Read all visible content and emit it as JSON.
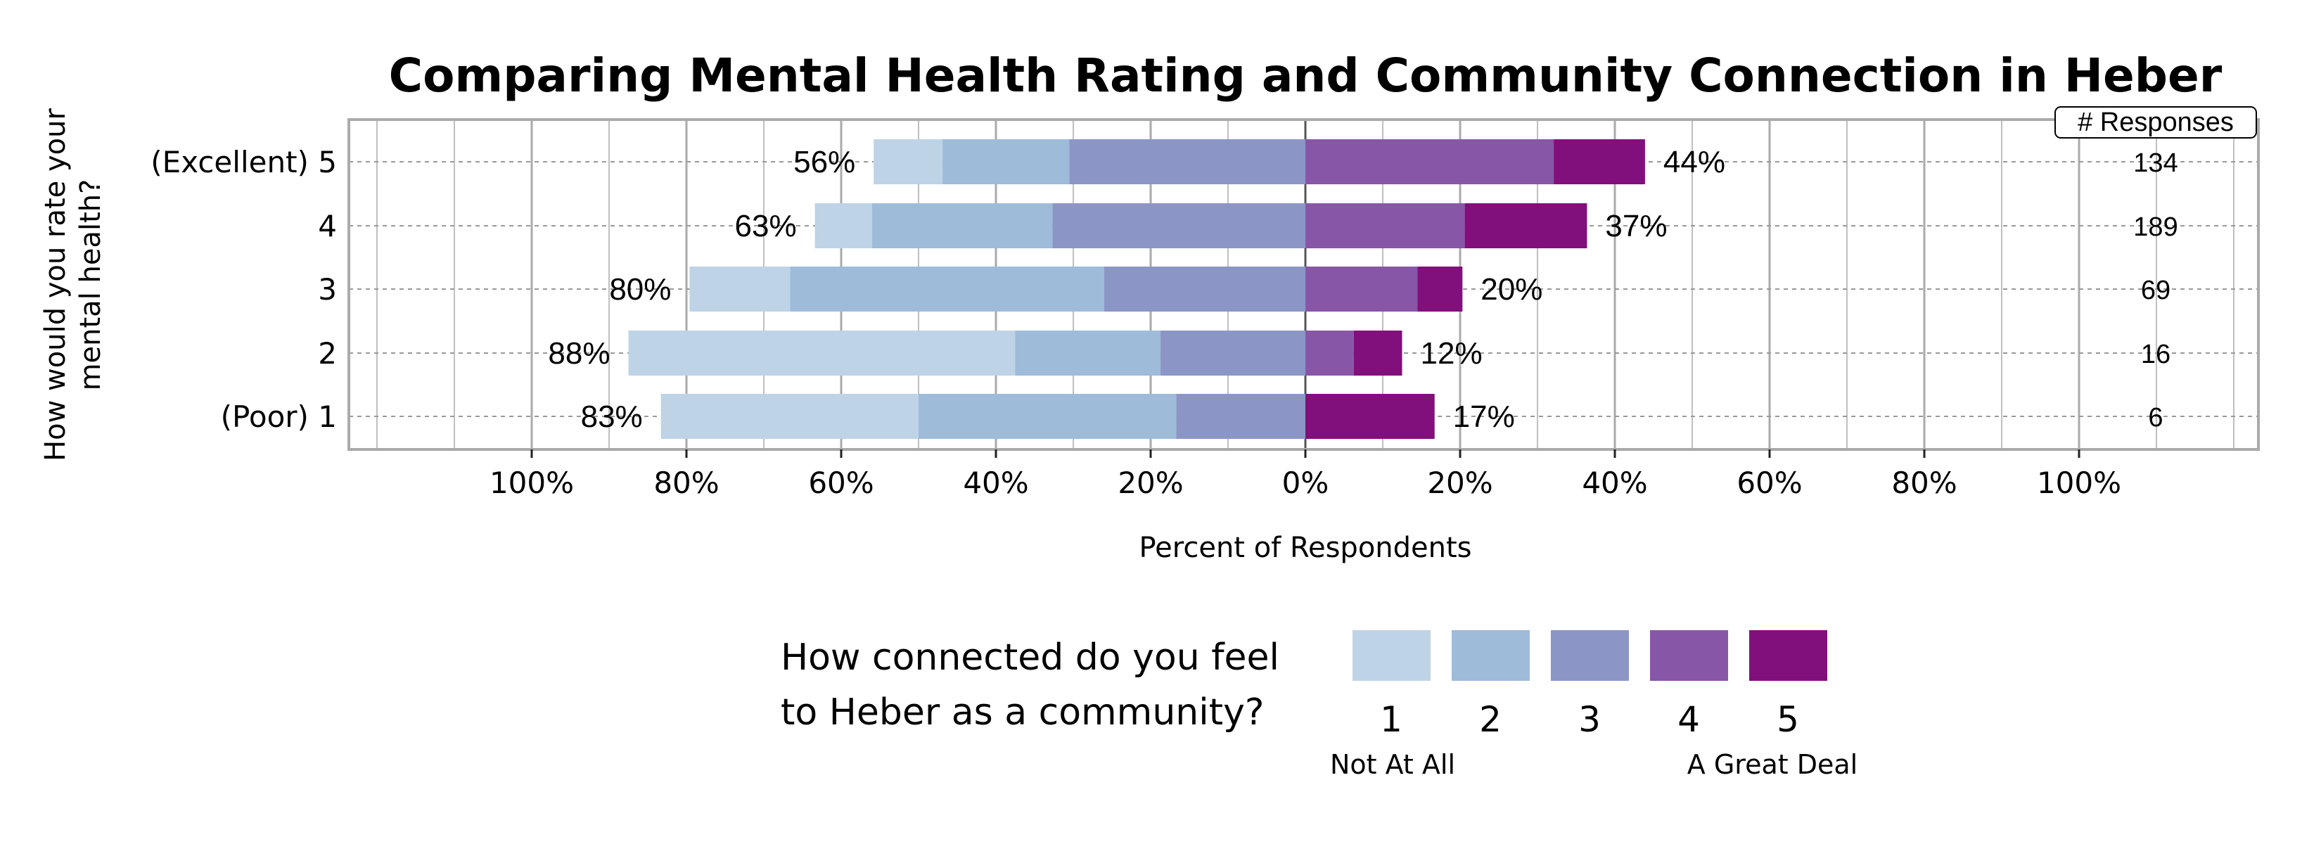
{
  "chart_data": {
    "type": "bar",
    "subtype": "diverging-stacked-horizontal",
    "title": "Comparing Mental Health Rating and Community Connection in Heber",
    "xlabel": "Percent of Respondents",
    "ylabel_lines": [
      "How would you rate your",
      "mental health?"
    ],
    "xlim": [
      -100,
      100
    ],
    "x_ticks": [
      -100,
      -80,
      -60,
      -40,
      -20,
      0,
      20,
      40,
      60,
      80,
      100
    ],
    "x_tick_labels": [
      "100%",
      "80%",
      "60%",
      "40%",
      "20%",
      "0%",
      "20%",
      "40%",
      "60%",
      "80%",
      "100%"
    ],
    "grid": true,
    "responses_header": "# Responses",
    "categories": [
      "(Excellent) 5",
      "4",
      "3",
      "2",
      "(Poor) 1"
    ],
    "series": [
      {
        "name": "1",
        "color": "#bfd3e6",
        "values": [
          8.9,
          7.4,
          13.0,
          50.0,
          33.3
        ]
      },
      {
        "name": "2",
        "color": "#9ebbd9",
        "values": [
          16.4,
          23.3,
          40.6,
          18.75,
          33.3
        ]
      },
      {
        "name": "3",
        "color": "#8c96c6",
        "values": [
          30.5,
          32.7,
          26.0,
          18.75,
          16.7
        ]
      },
      {
        "name": "4",
        "color": "#8856a7",
        "values": [
          32.1,
          20.6,
          14.5,
          6.25,
          0
        ]
      },
      {
        "name": "5",
        "color": "#810f7c",
        "values": [
          11.8,
          15.8,
          5.8,
          6.25,
          16.7
        ]
      }
    ],
    "negative_series_count": 3,
    "negative_labels": [
      "56%",
      "63%",
      "80%",
      "88%",
      "83%"
    ],
    "positive_labels": [
      "44%",
      "37%",
      "20%",
      "12%",
      "17%"
    ],
    "responses": [
      "134",
      "189",
      "69",
      "16",
      "6"
    ],
    "legend": {
      "title_lines": [
        "How connected do you feel",
        "to Heber as a community?"
      ],
      "low_label": "Not At All",
      "high_label": "A Great Deal",
      "placement": "bottom"
    }
  }
}
